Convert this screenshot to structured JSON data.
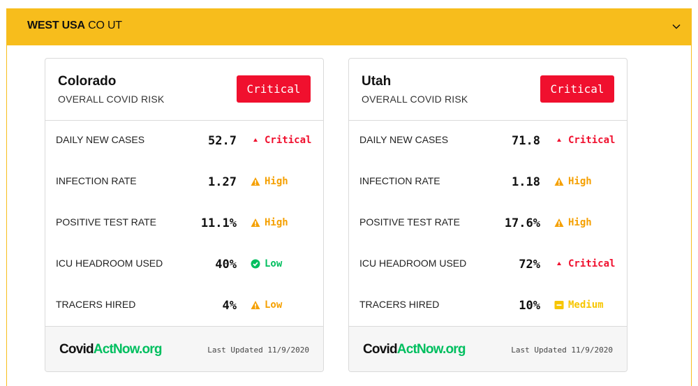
{
  "header": {
    "region_bold": "WEST USA",
    "region_states": "CO UT"
  },
  "cards": [
    {
      "state": "Colorado",
      "overall_label": "OVERALL COVID RISK",
      "overall_level": "Critical",
      "metrics": [
        {
          "label": "DAILY NEW CASES",
          "value": "52.7",
          "level": "Critical",
          "icon": "caret-up-icon"
        },
        {
          "label": "INFECTION RATE",
          "value": "1.27",
          "level": "High",
          "icon": "warning-icon"
        },
        {
          "label": "POSITIVE TEST RATE",
          "value": "11.1%",
          "level": "High",
          "icon": "warning-icon"
        },
        {
          "label": "ICU HEADROOM USED",
          "value": "40%",
          "level": "Low",
          "icon": "check-circle-icon"
        },
        {
          "label": "TRACERS HIRED",
          "value": "4%",
          "level": "Low",
          "icon": "warning-icon"
        }
      ],
      "logo": {
        "part1": "Covid",
        "part2": "ActNow.org"
      },
      "updated": "Last Updated 11/9/2020"
    },
    {
      "state": "Utah",
      "overall_label": "OVERALL COVID RISK",
      "overall_level": "Critical",
      "metrics": [
        {
          "label": "DAILY NEW CASES",
          "value": "71.8",
          "level": "Critical",
          "icon": "caret-up-icon"
        },
        {
          "label": "INFECTION RATE",
          "value": "1.18",
          "level": "High",
          "icon": "warning-icon"
        },
        {
          "label": "POSITIVE TEST RATE",
          "value": "17.6%",
          "level": "High",
          "icon": "warning-icon"
        },
        {
          "label": "ICU HEADROOM USED",
          "value": "72%",
          "level": "Critical",
          "icon": "caret-up-icon"
        },
        {
          "label": "TRACERS HIRED",
          "value": "10%",
          "level": "Medium",
          "icon": "dash-box-icon"
        }
      ],
      "logo": {
        "part1": "Covid",
        "part2": "ActNow.org"
      },
      "updated": "Last Updated 11/9/2020"
    }
  ],
  "colors": {
    "header_bg": "#f7bd1c",
    "critical": "#f0102e",
    "high": "#f5a000",
    "low_green": "#00bf5f",
    "low_orange": "#f5a000",
    "medium": "#f7c600",
    "brand_green": "#00bf5f"
  }
}
